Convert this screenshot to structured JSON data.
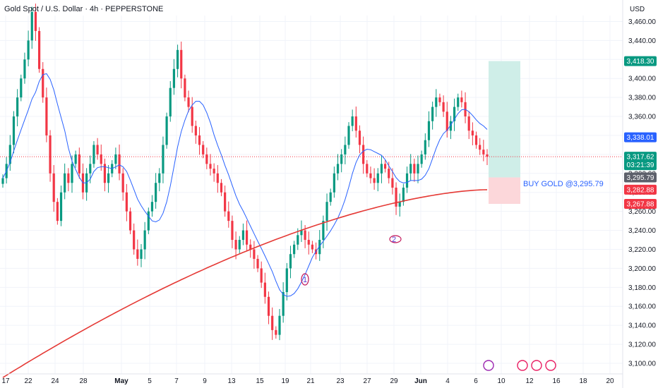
{
  "header": {
    "title": "Gold Spot / U.S. Dollar · 4h · PEPPERSTONE",
    "currency": "USD"
  },
  "chart_data": {
    "type": "candlestick",
    "symbol": "Gold Spot / U.S. Dollar",
    "interval": "4h",
    "exchange": "PEPPERSTONE",
    "ylim": [
      3100,
      3470
    ],
    "yticks": [
      "3,100.00",
      "3,120.00",
      "3,140.00",
      "3,160.00",
      "3,180.00",
      "3,200.00",
      "3,220.00",
      "3,240.00",
      "3,260.00",
      "3,280.00",
      "3,300.00",
      "3,320.00",
      "3,340.00",
      "3,360.00",
      "3,380.00",
      "3,400.00",
      "3,420.00",
      "3,440.00",
      "3,460.00"
    ],
    "xticks": [
      "17",
      "22",
      "24",
      "28",
      "May",
      "5",
      "7",
      "9",
      "13",
      "15",
      "19",
      "21",
      "23",
      "27",
      "29",
      "Jun",
      "4",
      "6",
      "10",
      "12",
      "16",
      "18",
      "20"
    ],
    "grid": true,
    "colors": {
      "up": "#089981",
      "down": "#f23645",
      "ma_fast": "#2962ff",
      "ma_slow": "#e53935",
      "target_zone": "#cfeee8",
      "stop_zone": "#fcd7da",
      "price_line": "#f23645"
    },
    "closes": [
      3295,
      3310,
      3330,
      3360,
      3380,
      3400,
      3420,
      3440,
      3470,
      3450,
      3410,
      3380,
      3340,
      3300,
      3270,
      3250,
      3280,
      3300,
      3290,
      3310,
      3320,
      3300,
      3280,
      3300,
      3310,
      3330,
      3320,
      3310,
      3290,
      3300,
      3310,
      3320,
      3300,
      3280,
      3260,
      3240,
      3220,
      3210,
      3220,
      3240,
      3260,
      3270,
      3290,
      3300,
      3330,
      3360,
      3390,
      3410,
      3430,
      3400,
      3380,
      3370,
      3350,
      3340,
      3330,
      3320,
      3310,
      3305,
      3300,
      3290,
      3280,
      3260,
      3250,
      3230,
      3220,
      3230,
      3240,
      3225,
      3220,
      3210,
      3200,
      3185,
      3170,
      3150,
      3135,
      3130,
      3150,
      3175,
      3200,
      3215,
      3225,
      3235,
      3240,
      3230,
      3225,
      3220,
      3215,
      3230,
      3250,
      3270,
      3280,
      3300,
      3310,
      3320,
      3330,
      3350,
      3360,
      3345,
      3330,
      3310,
      3300,
      3295,
      3290,
      3300,
      3310,
      3305,
      3295,
      3285,
      3265,
      3270,
      3285,
      3300,
      3310,
      3300,
      3310,
      3320,
      3335,
      3355,
      3370,
      3380,
      3375,
      3365,
      3345,
      3355,
      3370,
      3380,
      3375,
      3360,
      3345,
      3340,
      3330,
      3325,
      3320,
      3317.62
    ],
    "annotations": [
      {
        "label": "1"
      },
      {
        "label": "2"
      }
    ],
    "ma_fast_last": 3338.01,
    "position": {
      "side": "long",
      "label": "BUY GOLD @3,295.79",
      "entry": 3295.79,
      "target": 3418.3,
      "stop": 3267.88
    },
    "price_tags": [
      {
        "name": "target-tag",
        "text": "3,418.30",
        "value": 3418.3,
        "color": "#089981"
      },
      {
        "name": "ma-fast-tag",
        "text": "3,338.01",
        "value": 3338.01,
        "color": "#2962ff"
      },
      {
        "name": "last-price-tag",
        "text": "3,317.62",
        "value": 3317.62,
        "color": "#089981",
        "sub": "03:21:39"
      },
      {
        "name": "entry-tag",
        "text": "3,295.79",
        "value": 3295.79,
        "color": "#5d606b"
      },
      {
        "name": "ma-slow-tag",
        "text": "3,282.88",
        "value": 3282.88,
        "color": "#f23645"
      },
      {
        "name": "stop-tag",
        "text": "3,267.88",
        "value": 3267.88,
        "color": "#f23645"
      }
    ]
  }
}
